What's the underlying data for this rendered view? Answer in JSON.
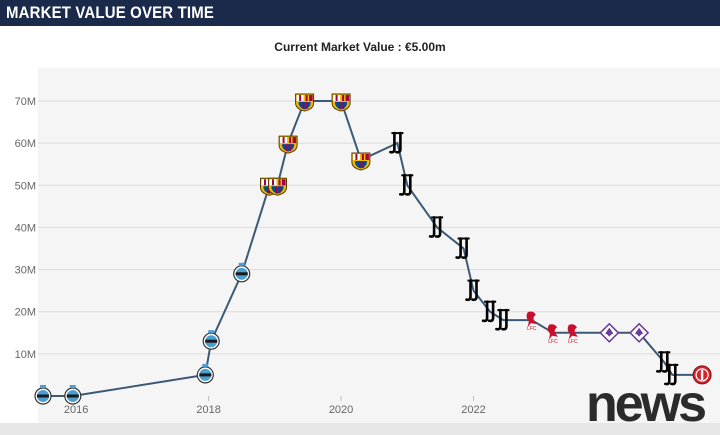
{
  "header": {
    "title": "MARKET VALUE OVER TIME"
  },
  "subtitle": "Current Market Value : €5.00m",
  "watermark": "news",
  "colors": {
    "header_bg": "#1b2a4a",
    "line": "#3d5a74",
    "grid": "#dcdcdc",
    "plot_bg": "#f5f5f5",
    "gremio": "#4a9fd4",
    "barcelona_red": "#a50044",
    "barcelona_blue": "#004d98",
    "barcelona_gold": "#edbb00",
    "juventus": "#000000",
    "liverpool": "#c8102e",
    "fiorentina": "#6a3d9a",
    "girona": "#d8212b"
  },
  "chart_data": {
    "type": "line",
    "title": "Current Market Value : €5.00m",
    "xlabel": "",
    "ylabel": "",
    "xlim": [
      2015.5,
      2025.6
    ],
    "ylim": [
      0,
      75
    ],
    "x_ticks": [
      2016,
      2018,
      2020,
      2022
    ],
    "x_tick_labels": [
      "2016",
      "2018",
      "2020",
      "2022"
    ],
    "y_ticks": [
      10,
      20,
      30,
      40,
      50,
      60,
      70
    ],
    "y_tick_labels": [
      "10M",
      "20M",
      "30M",
      "40M",
      "50M",
      "60M",
      "70M"
    ],
    "grid": true,
    "legend": "none",
    "series": [
      {
        "values": [
          {
            "x": 2015.5,
            "y": 0,
            "club": "gremio"
          },
          {
            "x": 2015.95,
            "y": 0,
            "club": "gremio"
          },
          {
            "x": 2017.95,
            "y": 5,
            "club": "gremio"
          },
          {
            "x": 2018.04,
            "y": 13,
            "club": "gremio"
          },
          {
            "x": 2018.5,
            "y": 29,
            "club": "gremio"
          },
          {
            "x": 2018.92,
            "y": 50,
            "club": "barcelona"
          },
          {
            "x": 2019.04,
            "y": 50,
            "club": "barcelona"
          },
          {
            "x": 2019.2,
            "y": 60,
            "club": "barcelona"
          },
          {
            "x": 2019.45,
            "y": 70,
            "club": "barcelona"
          },
          {
            "x": 2020.0,
            "y": 70,
            "club": "barcelona"
          },
          {
            "x": 2020.3,
            "y": 56,
            "club": "barcelona"
          },
          {
            "x": 2020.85,
            "y": 60,
            "club": "juventus"
          },
          {
            "x": 2021.0,
            "y": 50,
            "club": "juventus"
          },
          {
            "x": 2021.45,
            "y": 40,
            "club": "juventus"
          },
          {
            "x": 2021.85,
            "y": 35,
            "club": "juventus"
          },
          {
            "x": 2022.0,
            "y": 25,
            "club": "juventus"
          },
          {
            "x": 2022.25,
            "y": 20,
            "club": "juventus"
          },
          {
            "x": 2022.45,
            "y": 18,
            "club": "juventus"
          },
          {
            "x": 2022.88,
            "y": 18,
            "club": "liverpool"
          },
          {
            "x": 2023.2,
            "y": 15,
            "club": "liverpool"
          },
          {
            "x": 2023.5,
            "y": 15,
            "club": "liverpool"
          },
          {
            "x": 2024.05,
            "y": 15,
            "club": "fiorentina"
          },
          {
            "x": 2024.5,
            "y": 15,
            "club": "fiorentina"
          },
          {
            "x": 2024.88,
            "y": 8,
            "club": "juventus"
          },
          {
            "x": 2025.0,
            "y": 5,
            "club": "juventus"
          },
          {
            "x": 2025.45,
            "y": 5,
            "club": "girona"
          }
        ]
      }
    ]
  }
}
